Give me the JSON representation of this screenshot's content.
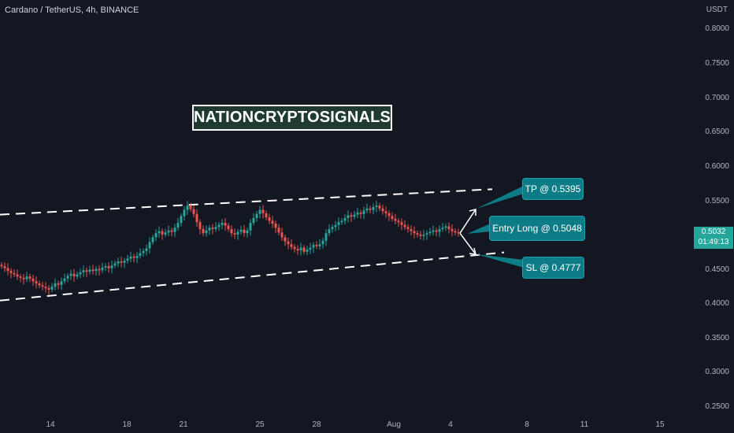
{
  "header": {
    "title": "Cardano / TetherUS, 4h, BINANCE",
    "currency": "USDT"
  },
  "watermark": {
    "label": "NATIONCRYPTOSIGNALS"
  },
  "callouts": {
    "tp": "TP @ 0.5395",
    "entry": "Entry Long @ 0.5048",
    "sl": "SL @ 0.4777"
  },
  "price_axis": {
    "ticks": [
      "0.8000",
      "0.7500",
      "0.7000",
      "0.6500",
      "0.6000",
      "0.5500",
      "0.4500",
      "0.4000",
      "0.3500",
      "0.3000",
      "0.2500"
    ],
    "current_price": "0.5032",
    "countdown": "01:49:13"
  },
  "time_axis": {
    "ticks": [
      "14",
      "18",
      "21",
      "25",
      "28",
      "Aug",
      "4",
      "8",
      "11",
      "15"
    ]
  },
  "colors": {
    "up": "#26a69a",
    "down": "#ef5350",
    "background": "#131722",
    "callout": "#0e7c86"
  },
  "chart_data": {
    "type": "candlestick",
    "ylim": [
      0.25,
      0.8
    ],
    "channel_upper": {
      "from": 0.53,
      "to": 0.567
    },
    "channel_lower": {
      "from": 0.405,
      "to": 0.475
    },
    "closes": [
      0.455,
      0.452,
      0.448,
      0.445,
      0.443,
      0.44,
      0.438,
      0.436,
      0.44,
      0.437,
      0.433,
      0.43,
      0.427,
      0.425,
      0.423,
      0.421,
      0.425,
      0.43,
      0.428,
      0.433,
      0.437,
      0.441,
      0.444,
      0.44,
      0.443,
      0.446,
      0.449,
      0.447,
      0.45,
      0.448,
      0.451,
      0.449,
      0.453,
      0.455,
      0.452,
      0.456,
      0.459,
      0.462,
      0.46,
      0.463,
      0.466,
      0.469,
      0.467,
      0.47,
      0.474,
      0.477,
      0.481,
      0.49,
      0.497,
      0.503,
      0.506,
      0.501,
      0.504,
      0.507,
      0.505,
      0.511,
      0.518,
      0.528,
      0.537,
      0.543,
      0.538,
      0.531,
      0.519,
      0.509,
      0.503,
      0.507,
      0.511,
      0.509,
      0.512,
      0.515,
      0.518,
      0.514,
      0.509,
      0.503,
      0.501,
      0.505,
      0.508,
      0.503,
      0.507,
      0.518,
      0.525,
      0.531,
      0.537,
      0.532,
      0.526,
      0.521,
      0.517,
      0.511,
      0.504,
      0.497,
      0.491,
      0.487,
      0.483,
      0.48,
      0.478,
      0.482,
      0.476,
      0.479,
      0.482,
      0.486,
      0.484,
      0.487,
      0.492,
      0.503,
      0.509,
      0.512,
      0.515,
      0.519,
      0.521,
      0.525,
      0.529,
      0.527,
      0.53,
      0.533,
      0.531,
      0.536,
      0.539,
      0.537,
      0.541,
      0.543,
      0.539,
      0.535,
      0.532,
      0.528,
      0.524,
      0.521,
      0.519,
      0.515,
      0.512,
      0.509,
      0.506,
      0.503,
      0.501,
      0.499,
      0.501,
      0.503,
      0.505,
      0.507,
      0.505,
      0.509,
      0.511,
      0.513,
      0.509,
      0.506,
      0.504,
      0.503
    ]
  }
}
